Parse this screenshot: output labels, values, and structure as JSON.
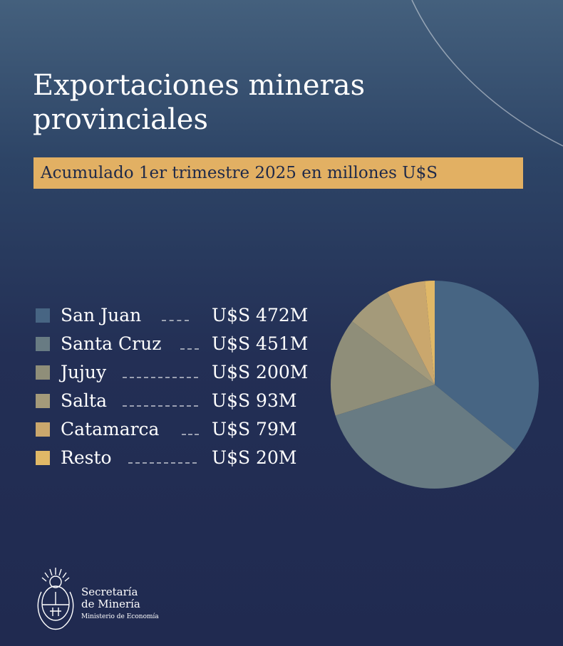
{
  "header": {
    "title": "Exportaciones mineras provinciales",
    "subtitle": "Acumulado 1er trimestre 2025 en millones U$S"
  },
  "chart_data": {
    "type": "pie",
    "title": "Exportaciones mineras provinciales",
    "subtitle": "Acumulado 1er trimestre 2025 en millones U$S",
    "categories": [
      "San Juan",
      "Santa Cruz",
      "Jujuy",
      "Salta",
      "Catamarca",
      "Resto"
    ],
    "values": [
      472,
      451,
      200,
      93,
      79,
      20
    ],
    "value_labels": [
      "U$S 472M",
      "U$S 451M",
      "U$S 200M",
      "U$S 93M",
      "U$S 79M",
      "U$S 20M"
    ],
    "colors": [
      "#476583",
      "#687b83",
      "#8f8e79",
      "#a49a7a",
      "#caa76d",
      "#e0b867"
    ],
    "legend_position": "left"
  },
  "footer": {
    "org_line1": "Secretaría",
    "org_line2": "de Minería",
    "ministry": "Ministerio de Economía",
    "crest_icon": "argentina-coat-of-arms-icon"
  }
}
